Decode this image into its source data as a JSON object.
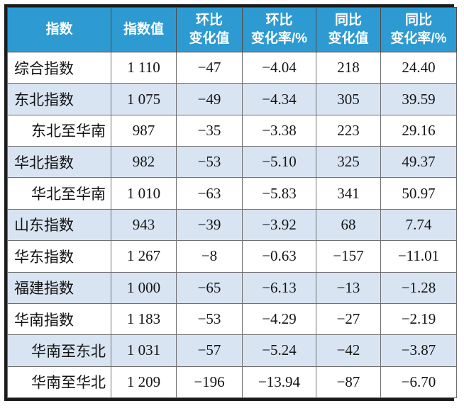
{
  "table": {
    "columns": [
      {
        "label": "指数"
      },
      {
        "label": "指数值"
      },
      {
        "label": "环比\n变化值"
      },
      {
        "label": "环比\n变化率/%"
      },
      {
        "label": "同比\n变化值"
      },
      {
        "label": "同比\n变化率/%"
      }
    ],
    "rows": [
      {
        "label": "综合指数",
        "indent": false,
        "values": [
          "1 110",
          "−47",
          "−4.04",
          "218",
          "24.40"
        ]
      },
      {
        "label": "东北指数",
        "indent": false,
        "values": [
          "1 075",
          "−49",
          "−4.34",
          "305",
          "39.59"
        ]
      },
      {
        "label": "东北至华南",
        "indent": true,
        "values": [
          "987",
          "−35",
          "−3.38",
          "223",
          "29.16"
        ]
      },
      {
        "label": "华北指数",
        "indent": false,
        "values": [
          "982",
          "−53",
          "−5.10",
          "325",
          "49.37"
        ]
      },
      {
        "label": "华北至华南",
        "indent": true,
        "values": [
          "1 010",
          "−63",
          "−5.83",
          "341",
          "50.97"
        ]
      },
      {
        "label": "山东指数",
        "indent": false,
        "values": [
          "943",
          "−39",
          "−3.92",
          "68",
          "7.74"
        ]
      },
      {
        "label": "华东指数",
        "indent": false,
        "values": [
          "1 267",
          "−8",
          "−0.63",
          "−157",
          "−11.01"
        ]
      },
      {
        "label": "福建指数",
        "indent": false,
        "values": [
          "1 000",
          "−65",
          "−6.13",
          "−13",
          "−1.28"
        ]
      },
      {
        "label": "华南指数",
        "indent": false,
        "values": [
          "1 183",
          "−53",
          "−4.29",
          "−27",
          "−2.19"
        ]
      },
      {
        "label": "华南至东北",
        "indent": true,
        "values": [
          "1 031",
          "−57",
          "−5.24",
          "−42",
          "−3.87"
        ]
      },
      {
        "label": "华南至华北",
        "indent": true,
        "values": [
          "1 209",
          "−196",
          "−13.94",
          "−87",
          "−6.70"
        ]
      }
    ]
  },
  "chart_data": {
    "type": "table",
    "columns": [
      "指数",
      "指数值",
      "环比变化值",
      "环比变化率/%",
      "同比变化值",
      "同比变化率/%"
    ],
    "rows": [
      [
        "综合指数",
        1110,
        -47,
        -4.04,
        218,
        24.4
      ],
      [
        "东北指数",
        1075,
        -49,
        -4.34,
        305,
        39.59
      ],
      [
        "东北至华南",
        987,
        -35,
        -3.38,
        223,
        29.16
      ],
      [
        "华北指数",
        982,
        -53,
        -5.1,
        325,
        49.37
      ],
      [
        "华北至华南",
        1010,
        -63,
        -5.83,
        341,
        50.97
      ],
      [
        "山东指数",
        943,
        -39,
        -3.92,
        68,
        7.74
      ],
      [
        "华东指数",
        1267,
        -8,
        -0.63,
        -157,
        -11.01
      ],
      [
        "福建指数",
        1000,
        -65,
        -6.13,
        -13,
        -1.28
      ],
      [
        "华南指数",
        1183,
        -53,
        -4.29,
        -27,
        -2.19
      ],
      [
        "华南至东北",
        1031,
        -57,
        -5.24,
        -42,
        -3.87
      ],
      [
        "华南至华北",
        1209,
        -196,
        -13.94,
        -87,
        -6.7
      ]
    ]
  },
  "colors": {
    "header_bg": "#2d9ad2",
    "header_text": "#ffffff",
    "row_bg": "#ffffff",
    "row_alt_bg": "#d9e4f2",
    "grid_line": "#6f6f6f",
    "outer_border": "#1b1b1b",
    "body_text": "#141414"
  }
}
